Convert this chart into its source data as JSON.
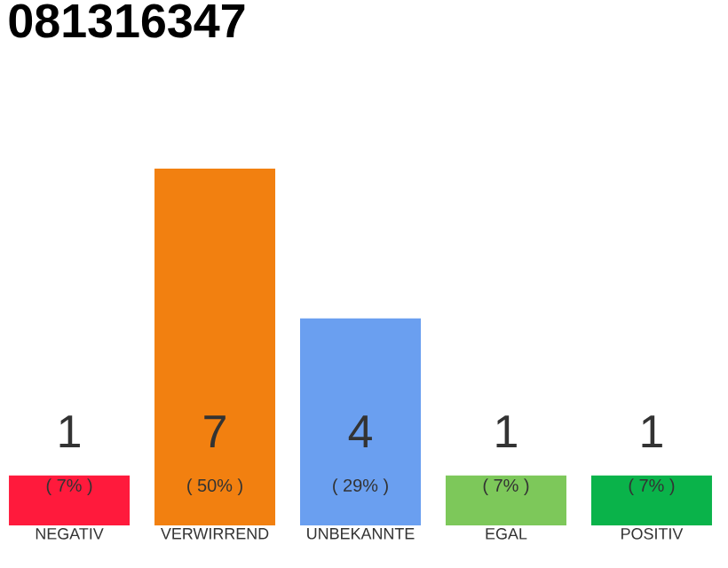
{
  "chart_data": {
    "type": "bar",
    "title": "081316347",
    "categories": [
      "NEGATIV",
      "VERWIRREND",
      "UNBEKANNTE",
      "EGAL",
      "POSITIV"
    ],
    "values": [
      7,
      50,
      29,
      7,
      7
    ],
    "colors": [
      "#ff1a3c",
      "#f28010",
      "#6a9ff0",
      "#7dc85a",
      "#0ab34a"
    ],
    "value_labels": [
      "( 7% )",
      "( 50% )",
      "( 29% )",
      "( 7% )",
      "( 7% )"
    ],
    "annotations": [
      "1",
      "7",
      "4",
      "1",
      "1"
    ]
  }
}
